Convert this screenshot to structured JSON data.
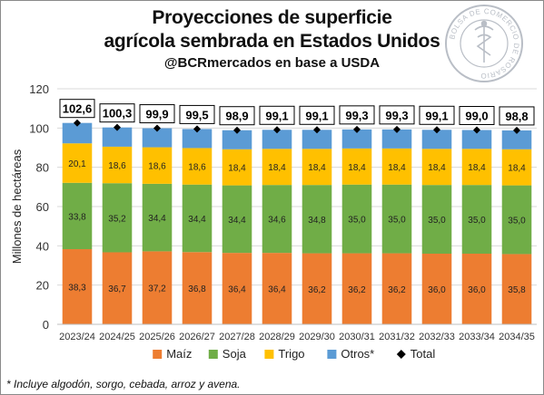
{
  "header": {
    "title_line1": "Proyecciones de superficie",
    "title_line2": "agrícola sembrada en Estados Unidos",
    "subtitle": "@BCRmercados en base a USDA"
  },
  "seal": {
    "text": "BOLSA DE COMERCIO DE ROSARIO",
    "icon": "caduceus-icon"
  },
  "footnote": "* Incluye algodón, sorgo, cebada, arroz y avena.",
  "chart_data": {
    "type": "bar",
    "stacked": true,
    "categories": [
      "2023/24",
      "2024/25",
      "2025/26",
      "2026/27",
      "2027/28",
      "2028/29",
      "2029/30",
      "2030/31",
      "2031/32",
      "2032/33",
      "2033/34",
      "2034/35"
    ],
    "ylabel": "Millones de hectáreas",
    "ylim": [
      0,
      120
    ],
    "yticks": [
      0,
      20,
      40,
      60,
      80,
      100,
      120
    ],
    "grid": true,
    "legend_position": "bottom",
    "series": [
      {
        "name": "Maíz",
        "color": "#ED7D31",
        "values": [
          38.3,
          36.7,
          37.2,
          36.8,
          36.4,
          36.4,
          36.2,
          36.2,
          36.2,
          36.0,
          36.0,
          35.8
        ],
        "labels": [
          "38,3",
          "36,7",
          "37,2",
          "36,8",
          "36,4",
          "36,4",
          "36,2",
          "36,2",
          "36,2",
          "36,0",
          "36,0",
          "35,8"
        ]
      },
      {
        "name": "Soja",
        "color": "#70AD47",
        "values": [
          33.8,
          35.2,
          34.4,
          34.4,
          34.4,
          34.6,
          34.8,
          35.0,
          35.0,
          35.0,
          35.0,
          35.0
        ],
        "labels": [
          "33,8",
          "35,2",
          "34,4",
          "34,4",
          "34,4",
          "34,6",
          "34,8",
          "35,0",
          "35,0",
          "35,0",
          "35,0",
          "35,0"
        ]
      },
      {
        "name": "Trigo",
        "color": "#FFC000",
        "values": [
          20.1,
          18.6,
          18.6,
          18.6,
          18.4,
          18.4,
          18.4,
          18.4,
          18.4,
          18.4,
          18.4,
          18.4
        ],
        "labels": [
          "20,1",
          "18,6",
          "18,6",
          "18,6",
          "18,4",
          "18,4",
          "18,4",
          "18,4",
          "18,4",
          "18,4",
          "18,4",
          "18,4"
        ]
      },
      {
        "name": "Otros*",
        "color": "#5B9BD5",
        "values": [
          10.4,
          9.8,
          9.7,
          9.7,
          9.7,
          9.7,
          9.7,
          9.7,
          9.7,
          9.7,
          9.6,
          9.6
        ]
      }
    ],
    "total": {
      "name": "Total",
      "marker": "diamond",
      "values": [
        102.6,
        100.3,
        99.9,
        99.5,
        98.9,
        99.1,
        99.1,
        99.3,
        99.3,
        99.1,
        99.0,
        98.8
      ],
      "labels": [
        "102,6",
        "100,3",
        "99,9",
        "99,5",
        "98,9",
        "99,1",
        "99,1",
        "99,3",
        "99,3",
        "99,1",
        "99,0",
        "98,8"
      ]
    }
  }
}
